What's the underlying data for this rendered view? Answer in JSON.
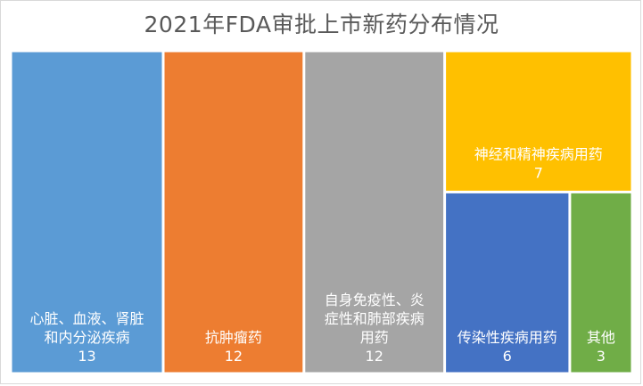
{
  "chart_data": {
    "type": "treemap",
    "title": "2021年FDA审批上市新药分布情况",
    "items": [
      {
        "label_lines": [
          "心脏、血液、肾脏",
          "和内分泌疾病"
        ],
        "value": 13,
        "color": "#5B9BD5"
      },
      {
        "label_lines": [
          "抗肿瘤药"
        ],
        "value": 12,
        "color": "#ED7D31"
      },
      {
        "label_lines": [
          "自身免疫性、炎",
          "症性和肺部疾病",
          "用药"
        ],
        "value": 12,
        "color": "#A5A5A5"
      },
      {
        "label_lines": [
          "神经和精神疾病用药"
        ],
        "value": 7,
        "color": "#FFC000"
      },
      {
        "label_lines": [
          "传染性疾病用药"
        ],
        "value": 6,
        "color": "#4472C4"
      },
      {
        "label_lines": [
          "其他"
        ],
        "value": 3,
        "color": "#70AD47"
      }
    ]
  }
}
